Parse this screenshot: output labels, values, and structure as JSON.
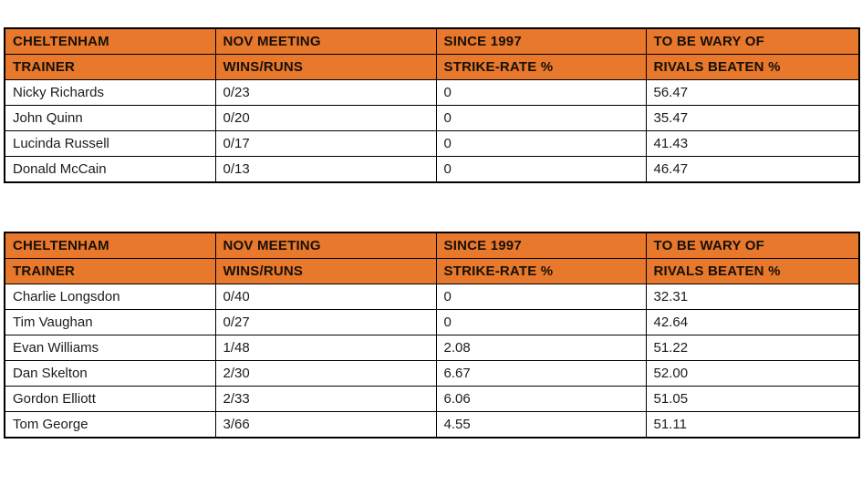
{
  "page": {
    "background": "#ffffff",
    "description": "Two Cheltenham November meeting trainer statistics tables"
  },
  "colors": {
    "header_bg": "#E8782C",
    "header_text": "#161008",
    "body_text": "#1b1b1b",
    "border": "#000000",
    "row_bg": "#ffffff"
  },
  "tables": [
    {
      "name": "cheltenham-nov-meeting-table-1",
      "columns": [
        {
          "header_line1": "CHELTENHAM",
          "header_line2": "TRAINER"
        },
        {
          "header_line1": "NOV MEETING",
          "header_line2": "WINS/RUNS"
        },
        {
          "header_line1": "SINCE 1997",
          "header_line2": "STRIKE-RATE %"
        },
        {
          "header_line1": "TO BE WARY OF",
          "header_line2": "RIVALS BEATEN %"
        }
      ],
      "rows": [
        [
          "Nicky Richards",
          "0/23",
          "0",
          "56.47"
        ],
        [
          "John Quinn",
          "0/20",
          "0",
          "35.47"
        ],
        [
          "Lucinda Russell",
          "0/17",
          "0",
          "41.43"
        ],
        [
          "Donald McCain",
          "0/13",
          "0",
          "46.47"
        ]
      ]
    },
    {
      "name": "cheltenham-nov-meeting-table-2",
      "columns": [
        {
          "header_line1": "CHELTENHAM",
          "header_line2": "TRAINER"
        },
        {
          "header_line1": "NOV MEETING",
          "header_line2": "WINS/RUNS"
        },
        {
          "header_line1": "SINCE 1997",
          "header_line2": "STRIKE-RATE %"
        },
        {
          "header_line1": "TO BE WARY OF",
          "header_line2": "RIVALS BEATEN %"
        }
      ],
      "rows": [
        [
          "Charlie Longsdon",
          "0/40",
          "0",
          "32.31"
        ],
        [
          "Tim Vaughan",
          "0/27",
          "0",
          "42.64"
        ],
        [
          "Evan Williams",
          "1/48",
          "2.08",
          "51.22"
        ],
        [
          "Dan Skelton",
          "2/30",
          "6.67",
          "52.00"
        ],
        [
          "Gordon Elliott",
          "2/33",
          "6.06",
          "51.05"
        ],
        [
          "Tom George",
          "3/66",
          "4.55",
          "51.11"
        ]
      ]
    }
  ],
  "chart_data": [
    {
      "type": "table",
      "title": "Cheltenham November meeting trainers since 1997 (winless group)",
      "columns": [
        "CHELTENHAM TRAINER",
        "NOV MEETING WINS/RUNS",
        "SINCE 1997 STRIKE-RATE %",
        "TO BE WARY OF RIVALS BEATEN %"
      ],
      "rows": [
        [
          "Nicky Richards",
          "0/23",
          0,
          56.47
        ],
        [
          "John Quinn",
          "0/20",
          0,
          35.47
        ],
        [
          "Lucinda Russell",
          "0/17",
          0,
          41.43
        ],
        [
          "Donald McCain",
          "0/13",
          0,
          46.47
        ]
      ]
    },
    {
      "type": "table",
      "title": "Cheltenham November meeting trainers since 1997 (low strike-rate group)",
      "columns": [
        "CHELTENHAM TRAINER",
        "NOV MEETING WINS/RUNS",
        "SINCE 1997 STRIKE-RATE %",
        "TO BE WARY OF RIVALS BEATEN %"
      ],
      "rows": [
        [
          "Charlie Longsdon",
          "0/40",
          0,
          32.31
        ],
        [
          "Tim Vaughan",
          "0/27",
          0,
          42.64
        ],
        [
          "Evan Williams",
          "1/48",
          2.08,
          51.22
        ],
        [
          "Dan Skelton",
          "2/30",
          6.67,
          52.0
        ],
        [
          "Gordon Elliott",
          "2/33",
          6.06,
          51.05
        ],
        [
          "Tom George",
          "3/66",
          4.55,
          51.11
        ]
      ]
    }
  ]
}
